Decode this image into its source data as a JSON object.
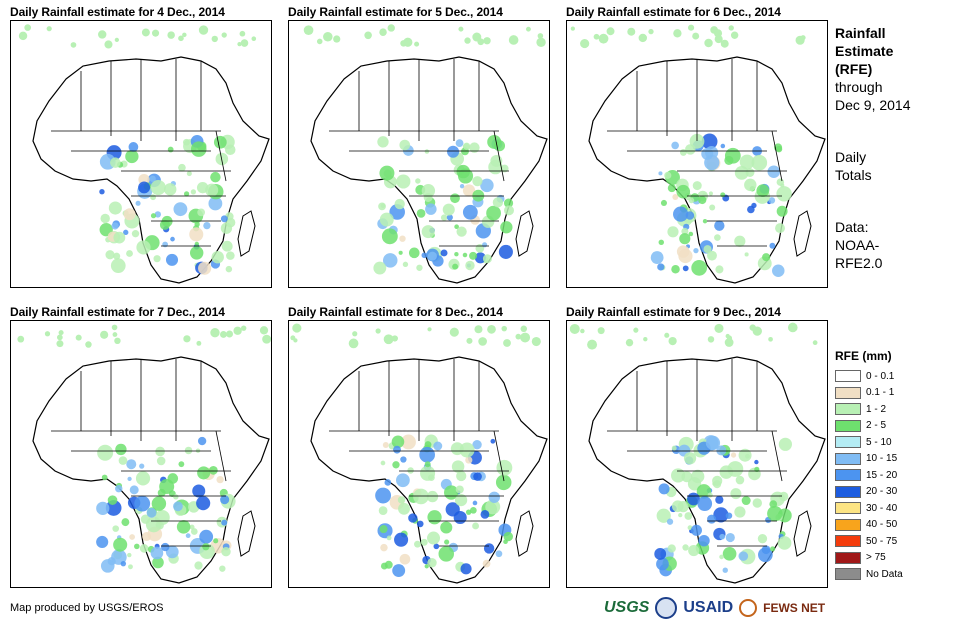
{
  "panels": [
    {
      "title": "Daily Rainfall estimate for 4 Dec., 2014"
    },
    {
      "title": "Daily Rainfall estimate for 5 Dec., 2014"
    },
    {
      "title": "Daily Rainfall estimate for 6 Dec., 2014"
    },
    {
      "title": "Daily Rainfall estimate for 7 Dec., 2014"
    },
    {
      "title": "Daily Rainfall estimate for 8 Dec., 2014"
    },
    {
      "title": "Daily Rainfall estimate for 9 Dec., 2014"
    }
  ],
  "info": {
    "title_line1": "Rainfall",
    "title_line2": "Estimate",
    "title_line3": "(RFE)",
    "through_label": "through",
    "through_date": "Dec 9, 2014",
    "totals_line1": "Daily",
    "totals_line2": "Totals",
    "data_line1": "Data:",
    "data_line2": "NOAA-",
    "data_line3": "RFE2.0"
  },
  "legend": {
    "title": "RFE (mm)",
    "items": [
      {
        "label": "0 - 0.1",
        "color": "#ffffff"
      },
      {
        "label": "0.1 - 1",
        "color": "#f1dfc4"
      },
      {
        "label": "1 - 2",
        "color": "#b8f0b4"
      },
      {
        "label": "2 - 5",
        "color": "#6ee06e"
      },
      {
        "label": "5 - 10",
        "color": "#b4ecf4"
      },
      {
        "label": "10 - 15",
        "color": "#80bcf4"
      },
      {
        "label": "15 - 20",
        "color": "#4c94f0"
      },
      {
        "label": "20 - 30",
        "color": "#1c5ce0"
      },
      {
        "label": "30 - 40",
        "color": "#fce484"
      },
      {
        "label": "40 - 50",
        "color": "#f8a41c"
      },
      {
        "label": "50 - 75",
        "color": "#f43c0c"
      },
      {
        "label": "> 75",
        "color": "#a01818"
      },
      {
        "label": "No Data",
        "color": "#8c8c8c"
      }
    ]
  },
  "credit": "Map produced by USGS/EROS",
  "logos": {
    "usgs": "USGS",
    "usaid": "USAID",
    "fews": "FEWS NET"
  }
}
